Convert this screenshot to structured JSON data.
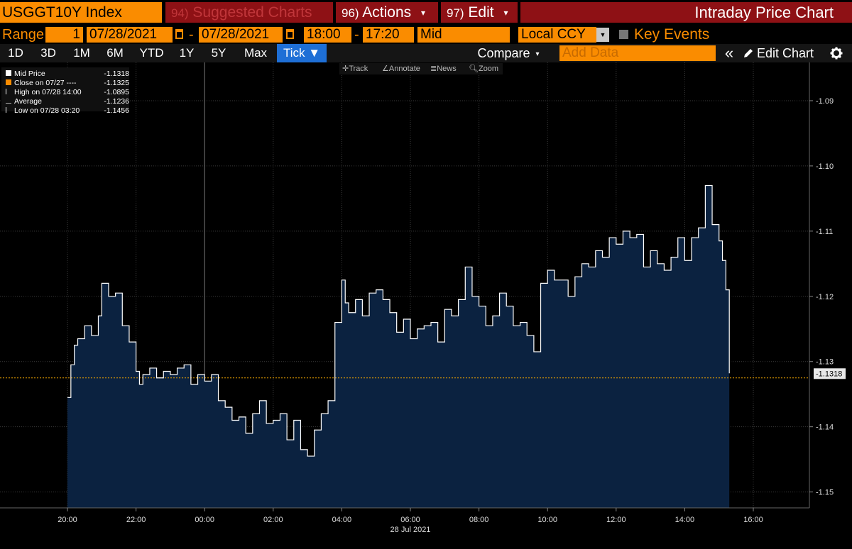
{
  "header": {
    "ticker": "USGGT10Y Index",
    "tabs": [
      {
        "num": "94)",
        "label": "Suggested Charts",
        "caret": ""
      },
      {
        "num": "96)",
        "label": "Actions",
        "caret": "▾"
      },
      {
        "num": "97)",
        "label": "Edit",
        "caret": "▾"
      }
    ],
    "title": "Intraday Price Chart"
  },
  "range_bar": {
    "range_label": "Range",
    "range_value": "1",
    "start_date": "07/28/2021",
    "end_date": "07/28/2021",
    "separator": "-",
    "start_time": "18:00",
    "end_time": "17:20",
    "price_type": "Mid",
    "currency": "Local CCY",
    "key_events_label": "Key Events"
  },
  "toolbar": {
    "periods": [
      "1D",
      "3D",
      "1M",
      "6M",
      "YTD",
      "1Y",
      "5Y",
      "Max"
    ],
    "tick_label": "Tick ▼",
    "compare_label": "Compare",
    "compare_caret": "▾",
    "add_data_placeholder": "Add Data",
    "collapse_icon": "«",
    "edit_chart_label": "Edit Chart"
  },
  "chart_tools": {
    "track": "Track",
    "annotate": "Annotate",
    "news": "News",
    "zoom": "Zoom"
  },
  "legend": [
    {
      "label": "Mid Price",
      "value": "-1.1318",
      "marker": "white-square"
    },
    {
      "label": "Close on 07/27 ----",
      "value": "-1.1325",
      "marker": "orange-square"
    },
    {
      "label": "High on 07/28 14:00",
      "value": "-1.0895",
      "marker": "high-tick"
    },
    {
      "label": "Average",
      "value": "-1.1236",
      "marker": "average-line"
    },
    {
      "label": "Low on 07/28 03:20",
      "value": "-1.1456",
      "marker": "low-tick"
    }
  ],
  "colors": {
    "orange": "#fa8c00",
    "red_tab": "#8e1115",
    "fill": "#0b2240",
    "close_line": "#f0a400",
    "active_blue": "#1e6fd6"
  },
  "chart_data": {
    "type": "area",
    "y_axis_position": "right",
    "ylim": [
      -1.152,
      -1.085
    ],
    "y_ticks": [
      "-1.09",
      "-1.10",
      "-1.11",
      "-1.12",
      "-1.13",
      "-1.14",
      "-1.15"
    ],
    "y_tick_values": [
      -1.09,
      -1.1,
      -1.11,
      -1.12,
      -1.13,
      -1.14,
      -1.15
    ],
    "x_ticks": [
      "20:00",
      "22:00",
      "00:00",
      "02:00",
      "04:00",
      "06:00",
      "08:00",
      "10:00",
      "12:00",
      "14:00",
      "16:00"
    ],
    "x_tick_hours": [
      0,
      2,
      4,
      6,
      8,
      10,
      12,
      14,
      16,
      18,
      20
    ],
    "date_label": "28 Jul 2021",
    "close_value": -1.1325,
    "last_value": -1.1318,
    "last_value_label": "-1.1318",
    "series": [
      {
        "x": [
          0,
          0.1,
          0.2,
          0.3,
          0.5,
          0.7,
          0.9,
          1.0,
          1.2,
          1.4,
          1.6,
          1.8,
          2.0,
          2.1,
          2.2,
          2.4,
          2.6,
          2.8,
          3.0,
          3.2,
          3.4,
          3.6,
          3.8,
          4.0,
          4.2,
          4.4,
          4.6,
          4.8,
          5.0,
          5.2,
          5.4,
          5.6,
          5.8,
          6.0,
          6.2,
          6.4,
          6.6,
          6.8,
          7.0,
          7.2,
          7.4,
          7.6,
          7.8,
          8.0,
          8.1,
          8.2,
          8.4,
          8.6,
          8.8,
          9.0,
          9.2,
          9.4,
          9.6,
          9.8,
          10.0,
          10.2,
          10.4,
          10.6,
          10.8,
          11.0,
          11.2,
          11.4,
          11.6,
          11.8,
          12.0,
          12.2,
          12.4,
          12.6,
          12.8,
          13.0,
          13.2,
          13.4,
          13.6,
          13.8,
          14.0,
          14.2,
          14.4,
          14.6,
          14.8,
          15.0,
          15.2,
          15.4,
          15.6,
          15.8,
          16.0,
          16.2,
          16.4,
          16.6,
          16.8,
          17.0,
          17.2,
          17.4,
          17.6,
          17.8,
          18.0,
          18.2,
          18.4,
          18.6,
          18.8,
          19.0,
          19.1,
          19.2,
          19.3
        ],
        "values": [
          -1.1355,
          -1.1305,
          -1.1275,
          -1.1265,
          -1.1245,
          -1.126,
          -1.123,
          -1.118,
          -1.12,
          -1.1195,
          -1.1245,
          -1.127,
          -1.1315,
          -1.1335,
          -1.132,
          -1.131,
          -1.1325,
          -1.1315,
          -1.132,
          -1.131,
          -1.1305,
          -1.1335,
          -1.132,
          -1.133,
          -1.132,
          -1.136,
          -1.137,
          -1.139,
          -1.1385,
          -1.141,
          -1.138,
          -1.136,
          -1.1395,
          -1.139,
          -1.138,
          -1.142,
          -1.139,
          -1.1435,
          -1.1445,
          -1.1405,
          -1.138,
          -1.136,
          -1.124,
          -1.1175,
          -1.121,
          -1.1225,
          -1.1205,
          -1.123,
          -1.1195,
          -1.119,
          -1.1205,
          -1.1225,
          -1.1255,
          -1.1235,
          -1.1265,
          -1.125,
          -1.1245,
          -1.124,
          -1.127,
          -1.122,
          -1.123,
          -1.1205,
          -1.1155,
          -1.12,
          -1.1215,
          -1.1245,
          -1.123,
          -1.1195,
          -1.1215,
          -1.1245,
          -1.124,
          -1.126,
          -1.1285,
          -1.118,
          -1.116,
          -1.1175,
          -1.1175,
          -1.12,
          -1.117,
          -1.115,
          -1.1155,
          -1.113,
          -1.114,
          -1.111,
          -1.112,
          -1.11,
          -1.111,
          -1.1105,
          -1.1155,
          -1.113,
          -1.115,
          -1.116,
          -1.114,
          -1.111,
          -1.1145,
          -1.111,
          -1.1095,
          -1.103,
          -1.109,
          -1.1115,
          -1.1145,
          -1.119,
          -1.1318
        ]
      }
    ]
  }
}
